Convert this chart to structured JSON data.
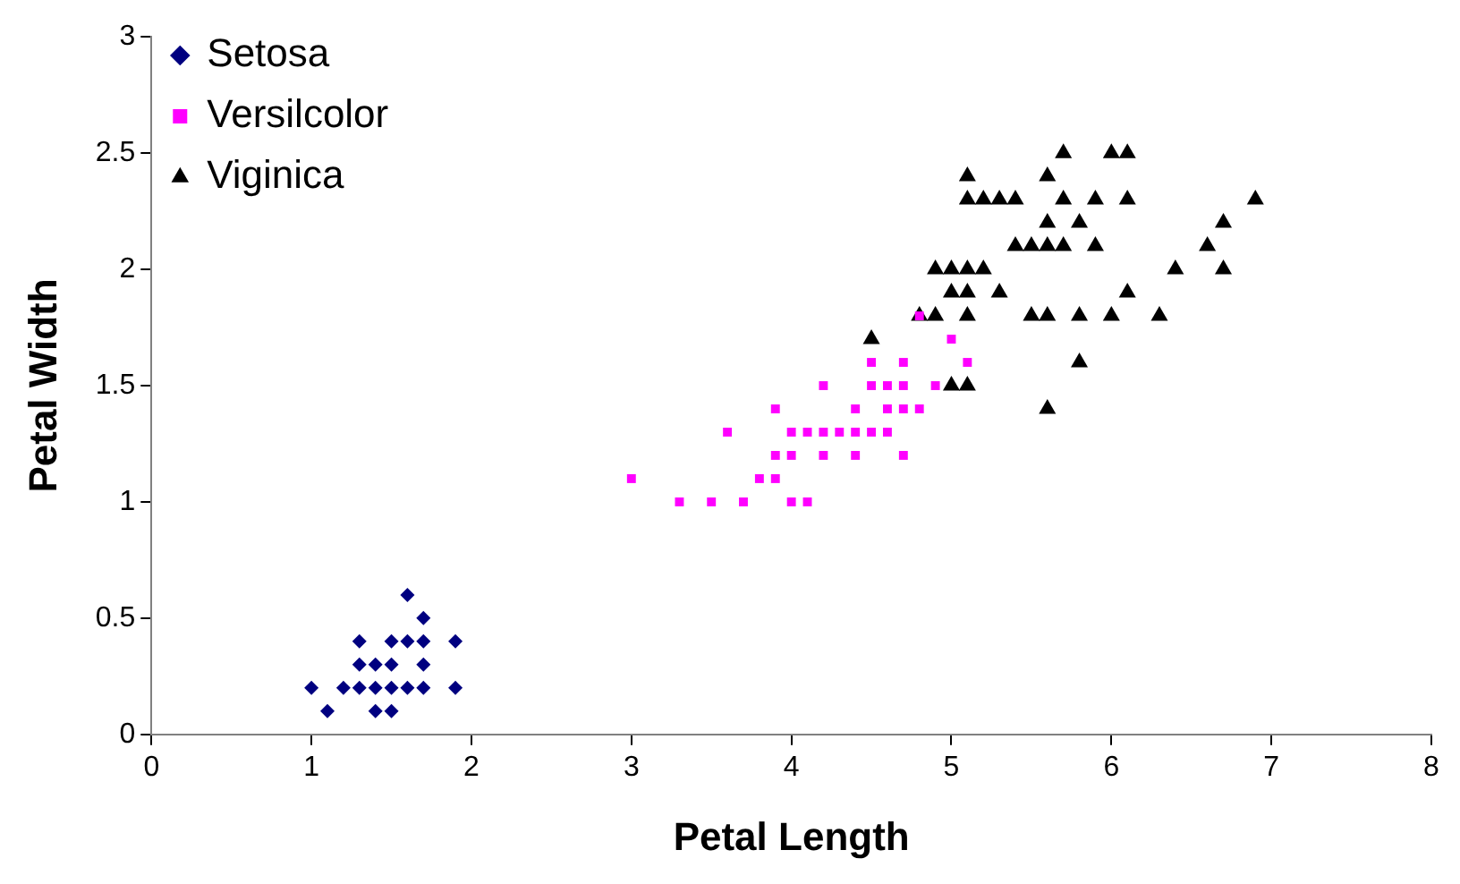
{
  "chart_data": {
    "type": "scatter",
    "xlabel": "Petal Length",
    "ylabel": "Petal Width",
    "xlim": [
      0,
      8
    ],
    "xticks": [
      0,
      1,
      2,
      3,
      4,
      5,
      6,
      7,
      8
    ],
    "ylim": [
      0,
      3
    ],
    "yticks": [
      0,
      0.5,
      1,
      1.5,
      2,
      2.5,
      3
    ],
    "grid": false,
    "legend": "top left",
    "series": [
      {
        "name": "Setosa",
        "color": "#000080",
        "marker": "diamond",
        "x": [
          1.6,
          1.7,
          1.3,
          1.5,
          1.6,
          1.7,
          1.9,
          1.3,
          1.4,
          1.5,
          1.7,
          1.0,
          1.2,
          1.3,
          1.4,
          1.5,
          1.6,
          1.7,
          1.9,
          1.1,
          1.4,
          1.5
        ],
        "values": [
          0.6,
          0.5,
          0.4,
          0.4,
          0.4,
          0.4,
          0.4,
          0.3,
          0.3,
          0.3,
          0.3,
          0.2,
          0.2,
          0.2,
          0.2,
          0.2,
          0.2,
          0.2,
          0.2,
          0.1,
          0.1,
          0.1
        ]
      },
      {
        "name": "Versilcolor",
        "color": "#ff00ff",
        "marker": "square",
        "x": [
          3.3,
          3.5,
          3.7,
          4.0,
          4.1,
          3.0,
          3.8,
          3.9,
          3.9,
          4.0,
          4.2,
          4.4,
          4.7,
          3.6,
          4.0,
          4.1,
          4.2,
          4.3,
          4.4,
          4.5,
          4.6,
          3.9,
          4.4,
          4.6,
          4.7,
          4.8,
          4.2,
          4.5,
          4.6,
          4.7,
          4.9,
          4.5,
          4.7,
          5.1,
          5.0,
          4.8
        ],
        "values": [
          1.0,
          1.0,
          1.0,
          1.0,
          1.0,
          1.1,
          1.1,
          1.1,
          1.2,
          1.2,
          1.2,
          1.2,
          1.2,
          1.3,
          1.3,
          1.3,
          1.3,
          1.3,
          1.3,
          1.3,
          1.3,
          1.4,
          1.4,
          1.4,
          1.4,
          1.4,
          1.5,
          1.5,
          1.5,
          1.5,
          1.5,
          1.6,
          1.6,
          1.6,
          1.7,
          1.8
        ]
      },
      {
        "name": "Viginica",
        "color": "#000000",
        "marker": "triangle",
        "x": [
          5.6,
          5.0,
          5.1,
          5.8,
          4.5,
          4.8,
          4.9,
          5.1,
          5.5,
          5.6,
          5.8,
          6.0,
          6.3,
          5.0,
          5.1,
          5.3,
          6.1,
          4.9,
          5.0,
          5.1,
          5.2,
          6.4,
          6.7,
          5.4,
          5.5,
          5.6,
          5.7,
          5.9,
          6.6,
          5.6,
          5.8,
          6.7,
          5.1,
          5.2,
          5.3,
          5.4,
          5.7,
          5.9,
          6.1,
          6.9,
          5.1,
          5.6,
          5.7,
          6.0,
          6.1
        ],
        "values": [
          1.4,
          1.5,
          1.5,
          1.6,
          1.7,
          1.8,
          1.8,
          1.8,
          1.8,
          1.8,
          1.8,
          1.8,
          1.8,
          1.9,
          1.9,
          1.9,
          1.9,
          2.0,
          2.0,
          2.0,
          2.0,
          2.0,
          2.0,
          2.1,
          2.1,
          2.1,
          2.1,
          2.1,
          2.1,
          2.2,
          2.2,
          2.2,
          2.3,
          2.3,
          2.3,
          2.3,
          2.3,
          2.3,
          2.3,
          2.3,
          2.4,
          2.4,
          2.5,
          2.5,
          2.5
        ]
      }
    ]
  }
}
